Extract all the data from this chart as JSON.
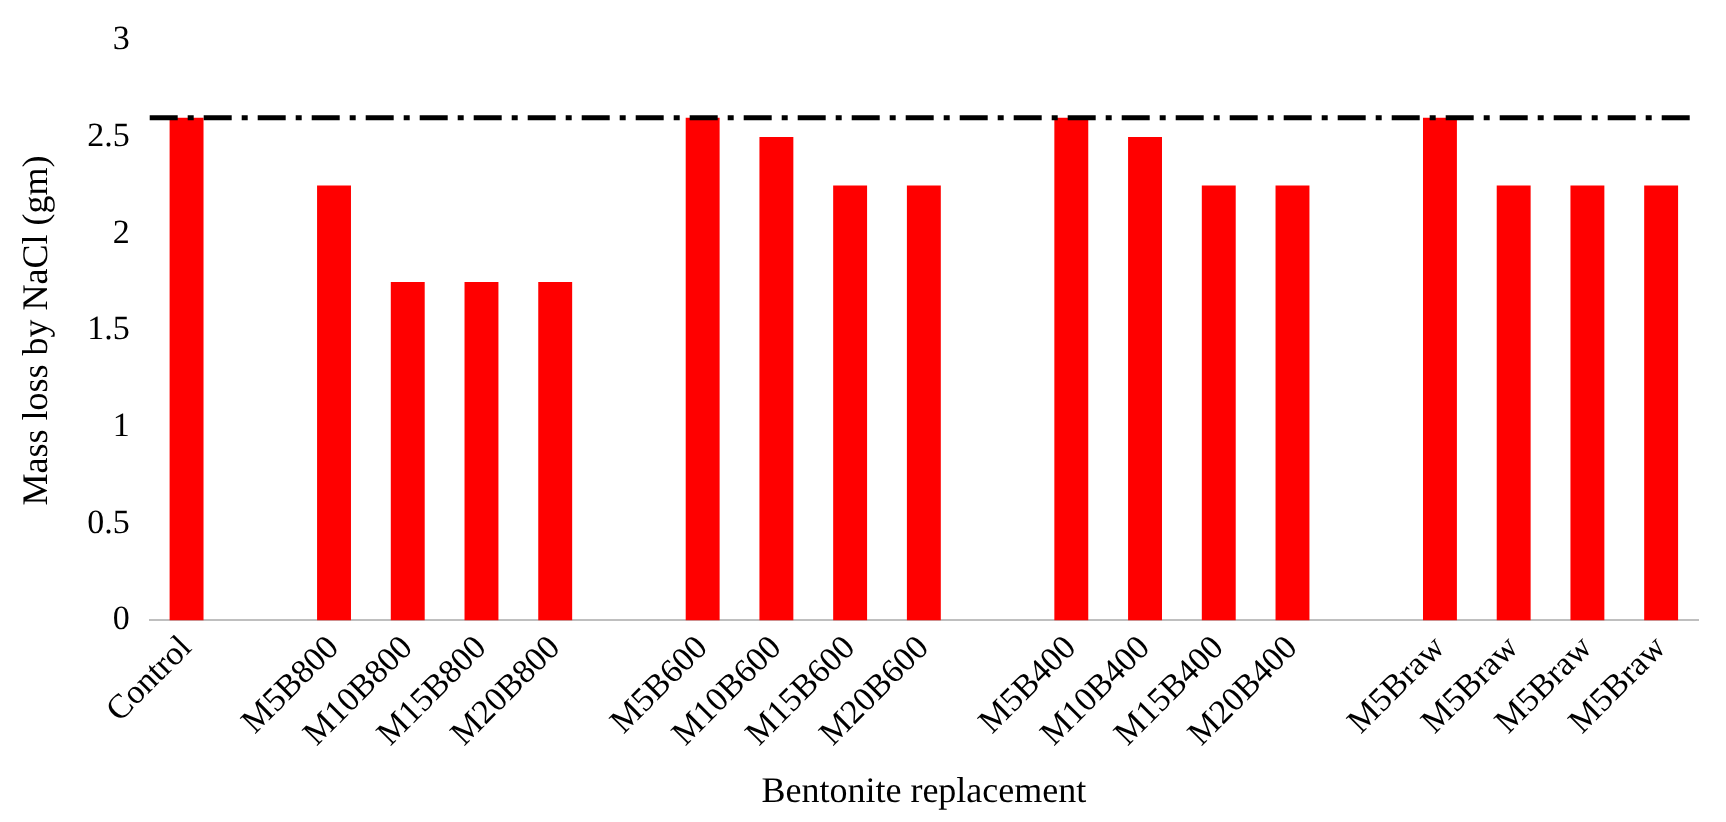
{
  "chart_data": {
    "type": "bar",
    "xlabel": "Bentonite replacement",
    "ylabel": "Mass loss by NaCl (gm)",
    "categories": [
      "Control",
      null,
      "M5B800",
      "M10B800",
      "M15B800",
      "M20B800",
      null,
      "M5B600",
      "M10B600",
      "M15B600",
      "M20B600",
      null,
      "M5B400",
      "M10B400",
      "M15B400",
      "M20B400",
      null,
      "M5Braw",
      "M5Braw",
      "M5Braw",
      "M5Braw"
    ],
    "values": [
      2.6,
      null,
      2.25,
      1.75,
      1.75,
      1.75,
      null,
      2.6,
      2.5,
      2.25,
      2.25,
      null,
      2.6,
      2.5,
      2.25,
      2.25,
      null,
      2.6,
      2.25,
      2.25,
      2.25
    ],
    "color": "#ff0000",
    "ylim": [
      0,
      3
    ],
    "yticks": [
      0,
      0.5,
      1,
      1.5,
      2,
      2.5,
      3
    ],
    "ref_lines": [
      {
        "axis": "y",
        "value": 2.6,
        "color": "#000000",
        "line_style": "dashed"
      }
    ],
    "grid": false,
    "legend": false
  }
}
